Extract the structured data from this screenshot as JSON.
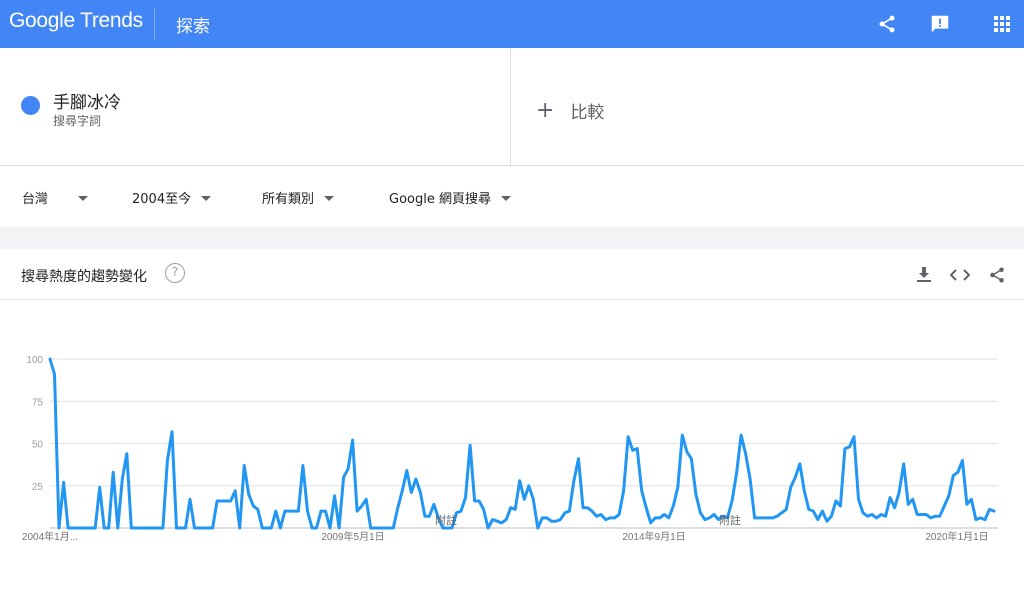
{
  "header": {
    "logo_text": "Google Trends",
    "search_label": "探索",
    "icons": [
      "share-icon",
      "feedback-icon",
      "apps-icon"
    ]
  },
  "term": {
    "name": "手腳冰冷",
    "type": "搜尋字詞",
    "color": "#4285f4"
  },
  "compare": {
    "label": "比較"
  },
  "filters": {
    "region": "台灣",
    "time": "2004至今",
    "category": "所有類別",
    "property": "Google 網頁搜尋"
  },
  "card": {
    "title": "搜尋熱度的趨勢變化",
    "help": "?"
  },
  "chart_data": {
    "type": "line",
    "series_color": "#2196f3",
    "y_ticks": [
      "100",
      "75",
      "50",
      "25"
    ],
    "ylim": [
      0,
      100
    ],
    "x_tick_labels": [
      "2004年1月...",
      "2009年5月1日",
      "2014年9月1日",
      "2020年1月1日"
    ],
    "annotations": [
      "附註",
      "附註"
    ],
    "series": [
      {
        "values": [
          100,
          91,
          0,
          27,
          0,
          0,
          0,
          0,
          0,
          0,
          0,
          24,
          0,
          0,
          33,
          0,
          29,
          44,
          0,
          0,
          0,
          0,
          0,
          0,
          0,
          0,
          40,
          57,
          0,
          0,
          0,
          17,
          0,
          0,
          0,
          0,
          0,
          16,
          16,
          16,
          16,
          22,
          0,
          37,
          20,
          13,
          11,
          0,
          0,
          0,
          10,
          0,
          10,
          10,
          10,
          10,
          37,
          10,
          0,
          0,
          10,
          10,
          0,
          19,
          0,
          30,
          35,
          52,
          10,
          13,
          17,
          0,
          0,
          0,
          0,
          0,
          0,
          12,
          22,
          34,
          21,
          29,
          21,
          7,
          7,
          14,
          6,
          0,
          0,
          0,
          9,
          10,
          18,
          49,
          16,
          16,
          11,
          0,
          5,
          4,
          3,
          5,
          12,
          11,
          28,
          17,
          25,
          17,
          0,
          6,
          6,
          4,
          4,
          5,
          9,
          10,
          28,
          41,
          12,
          12,
          10,
          7,
          8,
          5,
          6,
          6,
          8,
          22,
          54,
          46,
          47,
          22,
          12,
          3,
          6,
          6,
          8,
          6,
          13,
          24,
          55,
          45,
          41,
          20,
          9,
          5,
          6,
          8,
          5,
          7,
          6,
          16,
          32,
          55,
          44,
          29,
          6,
          6,
          6,
          6,
          6,
          7,
          9,
          11,
          24,
          30,
          38,
          22,
          11,
          10,
          5,
          10,
          4,
          7,
          16,
          13,
          47,
          48,
          54,
          17,
          9,
          7,
          8,
          6,
          8,
          7,
          18,
          12,
          21,
          38,
          14,
          17,
          8,
          8,
          8,
          6,
          7,
          7,
          13,
          19,
          31,
          33,
          40,
          14,
          17,
          5,
          6,
          5,
          11,
          10
        ]
      }
    ]
  }
}
